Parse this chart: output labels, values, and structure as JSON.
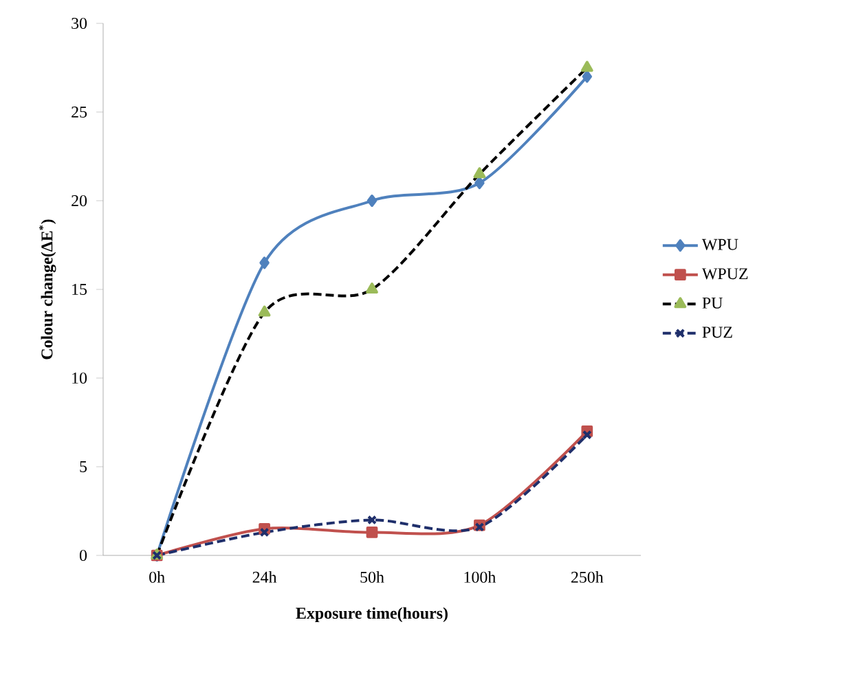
{
  "chart_data": {
    "type": "line",
    "xlabel": "Exposure time(hours)",
    "ylabel": "Colour change(ΔE$^{*}$)",
    "categories": [
      "0h",
      "24h",
      "50h",
      "100h",
      "250h"
    ],
    "ylim": [
      0,
      30
    ],
    "yticks": [
      0,
      5,
      10,
      15,
      20,
      25,
      30
    ],
    "legend": "right",
    "grid": false,
    "series": [
      {
        "name": "WPU",
        "color": "#4f81bd",
        "marker": "diamond",
        "line_style": "solid",
        "values": [
          0,
          16.5,
          20,
          21,
          27
        ]
      },
      {
        "name": "WPUZ",
        "color": "#c0504d",
        "marker": "square",
        "line_style": "solid",
        "values": [
          0,
          1.5,
          1.3,
          1.7,
          7
        ]
      },
      {
        "name": "PU",
        "color": "#000000",
        "marker": "triangle",
        "line_style": "dashed",
        "values": [
          0,
          13.7,
          15,
          21.5,
          27.5
        ]
      },
      {
        "name": "PUZ",
        "color": "#1f2f6b",
        "marker": "cross",
        "line_style": "dashed",
        "values": [
          0,
          1.3,
          2,
          1.6,
          6.8
        ]
      }
    ]
  }
}
